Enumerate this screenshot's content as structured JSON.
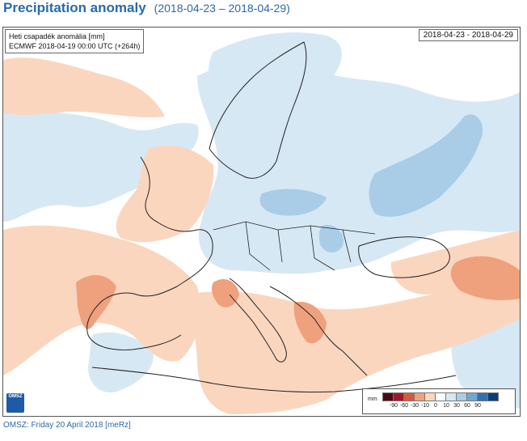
{
  "header": {
    "title": "Precipitation anomaly",
    "period": "(2018-04-23 – 2018-04-29)"
  },
  "map": {
    "info_line1": "Heti csapadék anomália [mm]",
    "info_line2": "ECMWF 2018-04-19 00:00 UTC (+264h)",
    "date_range": "2018-04-23 - 2018-04-29",
    "logo_text": "OMSZ",
    "colors": {
      "sea": "#ffffff",
      "land": "#ffffff",
      "dry_light": "#fbd6bf",
      "dry_medium": "#eea17c",
      "dry_strong": "#e2724c",
      "wet_light": "#d6e8f4",
      "wet_medium": "#a9cde6",
      "wet_strong": "#7fb3d8",
      "border": "#222222"
    }
  },
  "legend": {
    "unit": "mm",
    "swatch_colors": [
      "#4a0a14",
      "#a3162a",
      "#d9583c",
      "#eea17c",
      "#fbd6bf",
      "#ffffff",
      "#d6e8f4",
      "#a9cde6",
      "#6fa8d2",
      "#2f72b4",
      "#0c3e7a"
    ],
    "ticks": [
      "-90",
      "-60",
      "-30",
      "-10",
      "0",
      "10",
      "30",
      "60",
      "90"
    ]
  },
  "footer": {
    "text": "OMSZ: Friday 20 April 2018  [meRz]"
  }
}
